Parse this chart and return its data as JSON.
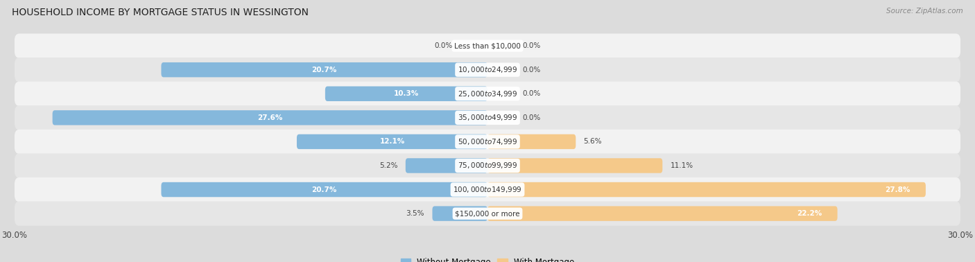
{
  "title": "HOUSEHOLD INCOME BY MORTGAGE STATUS IN WESSINGTON",
  "source": "Source: ZipAtlas.com",
  "categories": [
    "Less than $10,000",
    "$10,000 to $24,999",
    "$25,000 to $34,999",
    "$35,000 to $49,999",
    "$50,000 to $74,999",
    "$75,000 to $99,999",
    "$100,000 to $149,999",
    "$150,000 or more"
  ],
  "without_mortgage": [
    0.0,
    20.7,
    10.3,
    27.6,
    12.1,
    5.2,
    20.7,
    3.5
  ],
  "with_mortgage": [
    0.0,
    0.0,
    0.0,
    0.0,
    5.6,
    11.1,
    27.8,
    22.2
  ],
  "color_without": "#85B8DC",
  "color_with": "#F5C98A",
  "xlim": 30.0,
  "title_fontsize": 10,
  "label_fontsize": 7.5,
  "cat_fontsize": 7.5,
  "axis_label_fontsize": 8.5,
  "legend_fontsize": 8.5,
  "bar_height": 0.62
}
